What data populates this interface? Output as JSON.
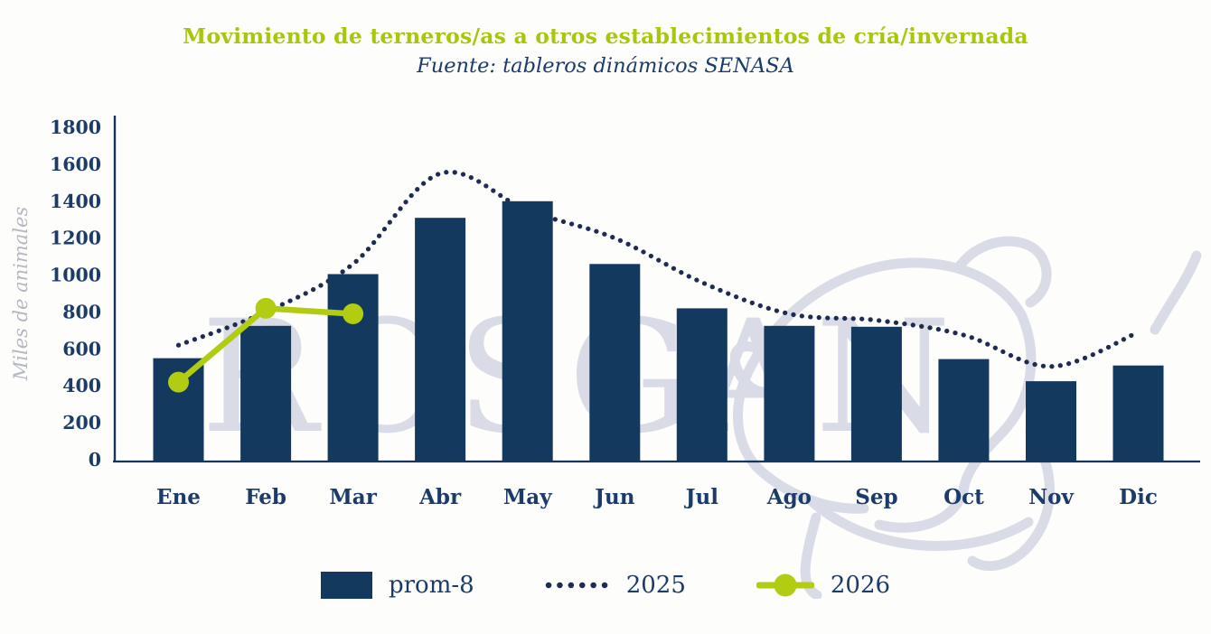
{
  "header": {
    "title": "Movimiento de terneros/as a otros establecimientos de cría/invernada",
    "subtitle": "Fuente: tableros dinámicos SENASA"
  },
  "watermark": {
    "text": "ROSGAN",
    "icon": "bull-head-outline-icon"
  },
  "colors": {
    "navy": "#14395f",
    "text_navy": "#1b3c6b",
    "dotted_navy": "#1f2c52",
    "axis_navy": "#16365d",
    "green": "#b1cc11",
    "green_title": "#a9c70a",
    "watermark_gray": "#d9dce6",
    "ylabel_gray": "#b5b8c0",
    "background": "#fdfdfc"
  },
  "chart_data": {
    "type": "combo-bar-line",
    "categories": [
      "Ene",
      "Feb",
      "Mar",
      "Abr",
      "May",
      "Jun",
      "Jul",
      "Ago",
      "Sep",
      "Oct",
      "Nov",
      "Dic"
    ],
    "title": "Movimiento de terneros/as a otros establecimientos de cría/invernada",
    "subtitle": "Fuente: tableros dinámicos SENASA",
    "xlabel": "",
    "ylabel": "Miles de animales",
    "ylim": [
      0,
      1800
    ],
    "yticks": [
      0,
      200,
      400,
      600,
      800,
      1000,
      1200,
      1400,
      1600,
      1800
    ],
    "grid": false,
    "legend_position": "bottom",
    "series": [
      {
        "name": "prom-8",
        "type": "bar",
        "color": "#14395f",
        "values": [
          550,
          725,
          1005,
          1310,
          1400,
          1060,
          820,
          725,
          720,
          545,
          425,
          510
        ]
      },
      {
        "name": "2025",
        "type": "dotted-line",
        "color": "#1f2c52",
        "values": [
          620,
          800,
          1060,
          1550,
          1350,
          1200,
          960,
          790,
          755,
          675,
          505,
          690
        ]
      },
      {
        "name": "2026",
        "type": "line-with-markers",
        "color": "#b1cc11",
        "values": [
          420,
          820,
          790,
          null,
          null,
          null,
          null,
          null,
          null,
          null,
          null,
          null
        ]
      }
    ]
  }
}
